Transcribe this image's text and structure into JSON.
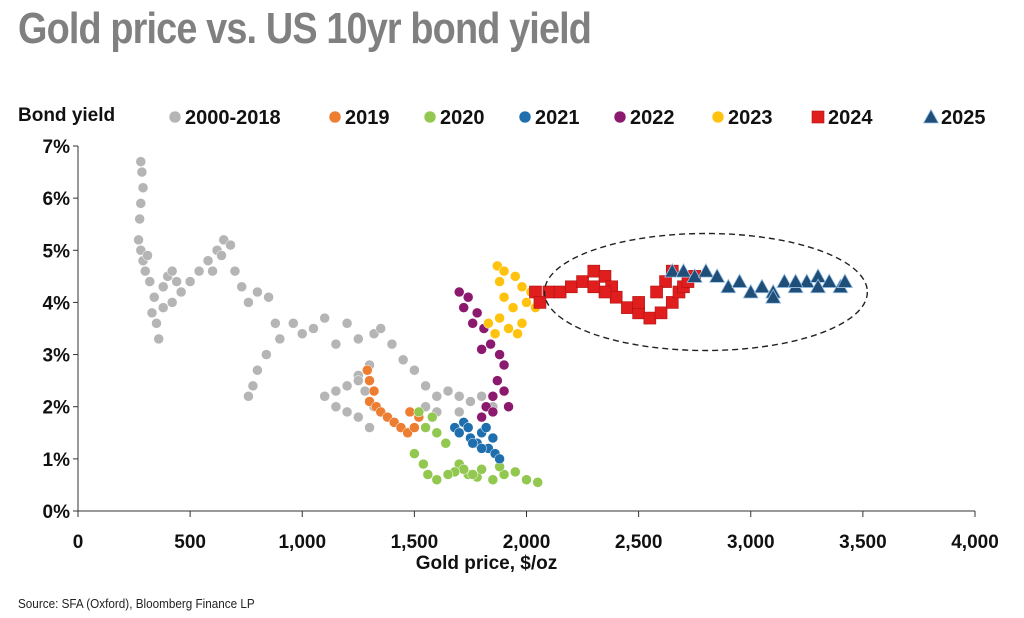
{
  "title": "Gold price vs. US 10yr bond yield",
  "source": "Source: SFA (Oxford), Bloomberg Finance LP",
  "chart_data": {
    "type": "scatter",
    "title": "Gold price vs. US 10yr bond yield",
    "xlabel": "Gold price, $/oz",
    "ylabel": "Bond yield",
    "xlim": [
      0,
      4000
    ],
    "ylim": [
      0,
      7
    ],
    "x_ticks": [
      0,
      500,
      1000,
      1500,
      2000,
      2500,
      3000,
      3500,
      4000
    ],
    "x_tick_labels": [
      "0",
      "500",
      "1,000",
      "1,500",
      "2,000",
      "2,500",
      "3,000",
      "3,500",
      "4,000"
    ],
    "y_ticks": [
      0,
      1,
      2,
      3,
      4,
      5,
      6,
      7
    ],
    "y_tick_labels": [
      "0%",
      "1%",
      "2%",
      "3%",
      "4%",
      "5%",
      "6%",
      "7%"
    ],
    "grid": false,
    "legend_position": "top",
    "annotation": "dashed ellipse around 2024 and 2025 points",
    "series": [
      {
        "name": "2000-2018",
        "marker": "circle",
        "color": "#b5b5b5",
        "points": [
          [
            280,
            6.7
          ],
          [
            285,
            6.5
          ],
          [
            290,
            6.2
          ],
          [
            280,
            5.9
          ],
          [
            275,
            5.6
          ],
          [
            270,
            5.2
          ],
          [
            280,
            5.0
          ],
          [
            290,
            4.8
          ],
          [
            300,
            4.6
          ],
          [
            310,
            4.9
          ],
          [
            320,
            4.4
          ],
          [
            340,
            4.1
          ],
          [
            350,
            3.6
          ],
          [
            360,
            3.3
          ],
          [
            330,
            3.8
          ],
          [
            380,
            4.3
          ],
          [
            400,
            4.5
          ],
          [
            420,
            4.6
          ],
          [
            440,
            4.4
          ],
          [
            460,
            4.2
          ],
          [
            420,
            4.0
          ],
          [
            380,
            3.9
          ],
          [
            500,
            4.4
          ],
          [
            540,
            4.6
          ],
          [
            580,
            4.8
          ],
          [
            620,
            5.0
          ],
          [
            650,
            5.2
          ],
          [
            680,
            5.1
          ],
          [
            640,
            4.9
          ],
          [
            600,
            4.6
          ],
          [
            700,
            4.6
          ],
          [
            730,
            4.3
          ],
          [
            760,
            4.0
          ],
          [
            800,
            4.2
          ],
          [
            850,
            4.1
          ],
          [
            880,
            3.6
          ],
          [
            900,
            3.3
          ],
          [
            840,
            3.0
          ],
          [
            800,
            2.7
          ],
          [
            780,
            2.4
          ],
          [
            760,
            2.2
          ],
          [
            960,
            3.6
          ],
          [
            1000,
            3.4
          ],
          [
            1050,
            3.5
          ],
          [
            1100,
            3.7
          ],
          [
            1150,
            3.2
          ],
          [
            1200,
            3.6
          ],
          [
            1250,
            3.3
          ],
          [
            1300,
            2.8
          ],
          [
            1250,
            2.6
          ],
          [
            1200,
            2.4
          ],
          [
            1150,
            2.3
          ],
          [
            1100,
            2.2
          ],
          [
            1150,
            2.0
          ],
          [
            1200,
            1.9
          ],
          [
            1250,
            2.5
          ],
          [
            1280,
            2.3
          ],
          [
            1320,
            2.0
          ],
          [
            1350,
            1.9
          ],
          [
            1300,
            1.6
          ],
          [
            1250,
            1.8
          ],
          [
            1320,
            3.4
          ],
          [
            1350,
            3.5
          ],
          [
            1400,
            3.2
          ],
          [
            1450,
            2.9
          ],
          [
            1500,
            2.7
          ],
          [
            1550,
            2.4
          ],
          [
            1600,
            2.2
          ],
          [
            1650,
            2.3
          ],
          [
            1700,
            2.2
          ],
          [
            1750,
            2.1
          ],
          [
            1800,
            2.2
          ],
          [
            1850,
            2.0
          ],
          [
            1700,
            1.9
          ],
          [
            1600,
            1.9
          ],
          [
            1550,
            2.0
          ]
        ]
      },
      {
        "name": "2019",
        "marker": "circle",
        "color": "#ed7d31",
        "points": [
          [
            1290,
            2.7
          ],
          [
            1300,
            2.5
          ],
          [
            1320,
            2.3
          ],
          [
            1300,
            2.1
          ],
          [
            1330,
            2.0
          ],
          [
            1350,
            1.9
          ],
          [
            1380,
            1.8
          ],
          [
            1410,
            1.7
          ],
          [
            1440,
            1.6
          ],
          [
            1470,
            1.5
          ],
          [
            1500,
            1.6
          ],
          [
            1520,
            1.8
          ],
          [
            1480,
            1.9
          ]
        ]
      },
      {
        "name": "2020",
        "marker": "circle",
        "color": "#92c84f",
        "points": [
          [
            1520,
            1.9
          ],
          [
            1550,
            1.6
          ],
          [
            1580,
            1.8
          ],
          [
            1600,
            1.5
          ],
          [
            1640,
            1.3
          ],
          [
            1700,
            0.9
          ],
          [
            1740,
            0.7
          ],
          [
            1780,
            0.65
          ],
          [
            1850,
            0.6
          ],
          [
            1900,
            0.7
          ],
          [
            1950,
            0.75
          ],
          [
            2000,
            0.6
          ],
          [
            2050,
            0.55
          ],
          [
            1880,
            0.85
          ],
          [
            1800,
            0.8
          ],
          [
            1760,
            0.7
          ],
          [
            1720,
            0.8
          ],
          [
            1680,
            0.75
          ],
          [
            1650,
            0.7
          ],
          [
            1600,
            0.6
          ],
          [
            1560,
            0.7
          ],
          [
            1540,
            0.9
          ],
          [
            1500,
            1.1
          ]
        ]
      },
      {
        "name": "2021",
        "marker": "circle",
        "color": "#1f6fae",
        "points": [
          [
            1680,
            1.6
          ],
          [
            1700,
            1.5
          ],
          [
            1720,
            1.7
          ],
          [
            1750,
            1.4
          ],
          [
            1780,
            1.3
          ],
          [
            1800,
            1.5
          ],
          [
            1820,
            1.6
          ],
          [
            1850,
            1.4
          ],
          [
            1830,
            1.2
          ],
          [
            1800,
            1.2
          ],
          [
            1760,
            1.3
          ],
          [
            1740,
            1.6
          ],
          [
            1860,
            1.1
          ],
          [
            1880,
            1.0
          ]
        ]
      },
      {
        "name": "2022",
        "marker": "circle",
        "color": "#8b1a6e",
        "points": [
          [
            1800,
            1.8
          ],
          [
            1820,
            2.0
          ],
          [
            1850,
            2.2
          ],
          [
            1870,
            2.5
          ],
          [
            1900,
            2.8
          ],
          [
            1880,
            3.0
          ],
          [
            1840,
            3.2
          ],
          [
            1810,
            3.5
          ],
          [
            1780,
            3.8
          ],
          [
            1740,
            4.1
          ],
          [
            1700,
            4.2
          ],
          [
            1720,
            3.9
          ],
          [
            1760,
            3.6
          ],
          [
            1800,
            3.1
          ],
          [
            1900,
            2.3
          ],
          [
            1920,
            2.0
          ],
          [
            1850,
            1.9
          ]
        ]
      },
      {
        "name": "2023",
        "marker": "circle",
        "color": "#ffc20e",
        "points": [
          [
            1830,
            3.6
          ],
          [
            1860,
            3.4
          ],
          [
            1880,
            3.7
          ],
          [
            1920,
            3.5
          ],
          [
            1960,
            3.4
          ],
          [
            1980,
            3.6
          ],
          [
            1940,
            3.9
          ],
          [
            1900,
            4.1
          ],
          [
            1880,
            4.4
          ],
          [
            1870,
            4.7
          ],
          [
            1900,
            4.6
          ],
          [
            1950,
            4.5
          ],
          [
            1980,
            4.3
          ],
          [
            2000,
            4.0
          ],
          [
            2040,
            3.9
          ],
          [
            2020,
            4.2
          ]
        ]
      },
      {
        "name": "2024",
        "marker": "square",
        "color": "#e01e1e",
        "points": [
          [
            2040,
            4.2
          ],
          [
            2060,
            4.0
          ],
          [
            2100,
            4.2
          ],
          [
            2150,
            4.2
          ],
          [
            2200,
            4.3
          ],
          [
            2250,
            4.4
          ],
          [
            2300,
            4.6
          ],
          [
            2350,
            4.5
          ],
          [
            2380,
            4.3
          ],
          [
            2400,
            4.1
          ],
          [
            2450,
            3.9
          ],
          [
            2500,
            3.8
          ],
          [
            2550,
            3.7
          ],
          [
            2600,
            3.8
          ],
          [
            2650,
            4.0
          ],
          [
            2680,
            4.2
          ],
          [
            2700,
            4.3
          ],
          [
            2720,
            4.4
          ],
          [
            2750,
            4.5
          ],
          [
            2650,
            4.6
          ],
          [
            2620,
            4.4
          ],
          [
            2580,
            4.2
          ],
          [
            2500,
            4.0
          ],
          [
            2350,
            4.2
          ],
          [
            2300,
            4.3
          ]
        ]
      },
      {
        "name": "2025",
        "marker": "triangle",
        "color": "#1f4e79",
        "points": [
          [
            2650,
            4.6
          ],
          [
            2700,
            4.6
          ],
          [
            2750,
            4.5
          ],
          [
            2800,
            4.6
          ],
          [
            2850,
            4.5
          ],
          [
            2900,
            4.3
          ],
          [
            2950,
            4.4
          ],
          [
            3000,
            4.2
          ],
          [
            3050,
            4.3
          ],
          [
            3100,
            4.2
          ],
          [
            3150,
            4.4
          ],
          [
            3200,
            4.3
          ],
          [
            3250,
            4.4
          ],
          [
            3300,
            4.5
          ],
          [
            3350,
            4.4
          ],
          [
            3400,
            4.3
          ],
          [
            3420,
            4.4
          ],
          [
            3300,
            4.3
          ],
          [
            3200,
            4.4
          ],
          [
            3100,
            4.1
          ]
        ]
      }
    ]
  }
}
